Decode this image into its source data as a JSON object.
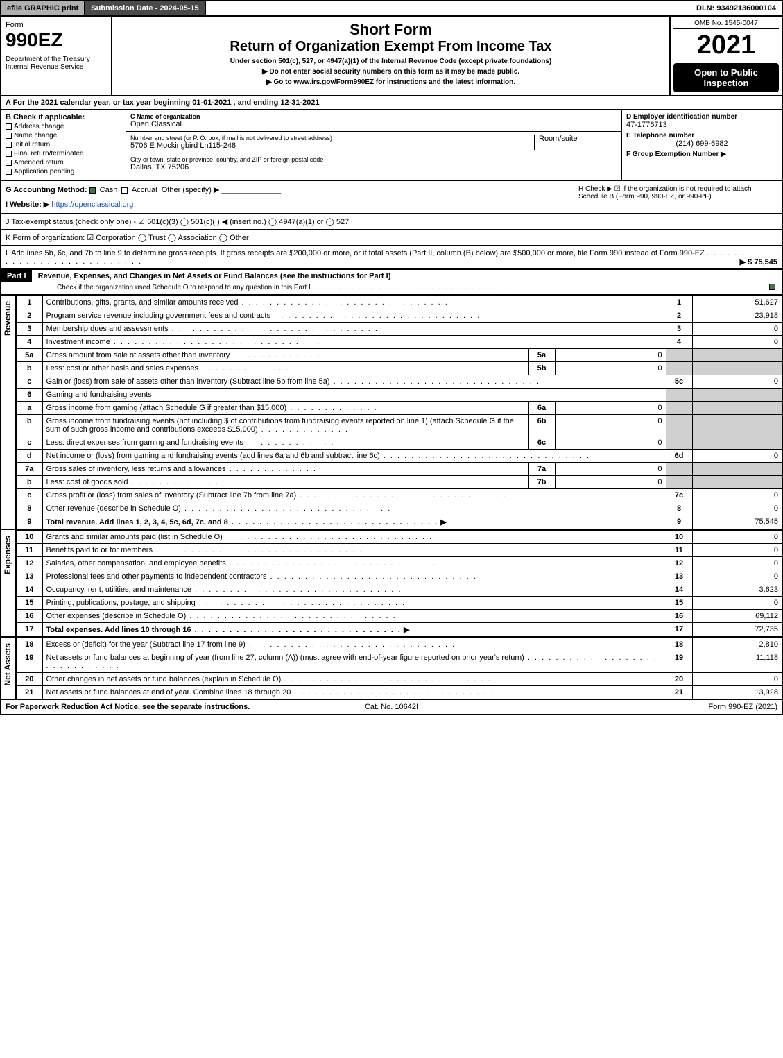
{
  "topbar": {
    "efile": "efile GRAPHIC print",
    "subdate": "Submission Date - 2024-05-15",
    "dln": "DLN: 93492136000104"
  },
  "header": {
    "form": "Form",
    "formnum": "990EZ",
    "dept": "Department of the Treasury\nInternal Revenue Service",
    "short": "Short Form",
    "title": "Return of Organization Exempt From Income Tax",
    "under": "Under section 501(c), 527, or 4947(a)(1) of the Internal Revenue Code (except private foundations)",
    "bullet1": "Do not enter social security numbers on this form as it may be made public.",
    "bullet2": "Go to www.irs.gov/Form990EZ for instructions and the latest information.",
    "omb": "OMB No. 1545-0047",
    "year": "2021",
    "open": "Open to Public Inspection"
  },
  "rowA": "A  For the 2021 calendar year, or tax year beginning 01-01-2021 , and ending 12-31-2021",
  "B": {
    "label": "B  Check if applicable:",
    "opts": [
      "Address change",
      "Name change",
      "Initial return",
      "Final return/terminated",
      "Amended return",
      "Application pending"
    ]
  },
  "C": {
    "namelbl": "C Name of organization",
    "name": "Open Classical",
    "addrlbl": "Number and street (or P. O. box, if mail is not delivered to street address)",
    "addr": "5706 E Mockingbird Ln115-248",
    "roomlbl": "Room/suite",
    "citylbl": "City or town, state or province, country, and ZIP or foreign postal code",
    "city": "Dallas, TX  75206"
  },
  "D": {
    "einlbl": "D Employer identification number",
    "ein": "47-1776713",
    "tellbl": "E Telephone number",
    "tel": "(214) 699-6982",
    "grplbl": "F Group Exemption Number  ▶"
  },
  "G": {
    "label": "G Accounting Method:",
    "cash": "Cash",
    "accr": "Accrual",
    "other": "Other (specify) ▶"
  },
  "H": "H   Check ▶ ☑ if the organization is not required to attach Schedule B (Form 990, 990-EZ, or 990-PF).",
  "I": {
    "label": "I Website: ▶",
    "url": "https://openclassical.org"
  },
  "J": "J Tax-exempt status (check only one) - ☑ 501(c)(3)  ◯ 501(c)(  ) ◀ (insert no.)  ◯ 4947(a)(1) or  ◯ 527",
  "K": "K Form of organization:  ☑ Corporation   ◯ Trust   ◯ Association   ◯ Other",
  "L": {
    "text": "L Add lines 5b, 6c, and 7b to line 9 to determine gross receipts. If gross receipts are $200,000 or more, or if total assets (Part II, column (B) below) are $500,000 or more, file Form 990 instead of Form 990-EZ",
    "amt": "▶ $ 75,545"
  },
  "part1": {
    "bar": "Part I",
    "title": "Revenue, Expenses, and Changes in Net Assets or Fund Balances (see the instructions for Part I)",
    "sub": "Check if the organization used Schedule O to respond to any question in this Part I"
  },
  "sides": {
    "rev": "Revenue",
    "exp": "Expenses",
    "net": "Net Assets"
  },
  "lines": [
    {
      "n": "1",
      "d": "Contributions, gifts, grants, and similar amounts received",
      "c": "1",
      "v": "51,627"
    },
    {
      "n": "2",
      "d": "Program service revenue including government fees and contracts",
      "c": "2",
      "v": "23,918"
    },
    {
      "n": "3",
      "d": "Membership dues and assessments",
      "c": "3",
      "v": "0"
    },
    {
      "n": "4",
      "d": "Investment income",
      "c": "4",
      "v": "0"
    },
    {
      "n": "5a",
      "d": "Gross amount from sale of assets other than inventory",
      "ic": "5a",
      "iv": "0"
    },
    {
      "n": "b",
      "d": "Less: cost or other basis and sales expenses",
      "ic": "5b",
      "iv": "0"
    },
    {
      "n": "c",
      "d": "Gain or (loss) from sale of assets other than inventory (Subtract line 5b from line 5a)",
      "c": "5c",
      "v": "0"
    },
    {
      "n": "6",
      "d": "Gaming and fundraising events"
    },
    {
      "n": "a",
      "d": "Gross income from gaming (attach Schedule G if greater than $15,000)",
      "ic": "6a",
      "iv": "0"
    },
    {
      "n": "b",
      "d": "Gross income from fundraising events (not including $                     of contributions from fundraising events reported on line 1) (attach Schedule G if the sum of such gross income and contributions exceeds $15,000)",
      "ic": "6b",
      "iv": "0"
    },
    {
      "n": "c",
      "d": "Less: direct expenses from gaming and fundraising events",
      "ic": "6c",
      "iv": "0"
    },
    {
      "n": "d",
      "d": "Net income or (loss) from gaming and fundraising events (add lines 6a and 6b and subtract line 6c)",
      "c": "6d",
      "v": "0"
    },
    {
      "n": "7a",
      "d": "Gross sales of inventory, less returns and allowances",
      "ic": "7a",
      "iv": "0"
    },
    {
      "n": "b",
      "d": "Less: cost of goods sold",
      "ic": "7b",
      "iv": "0"
    },
    {
      "n": "c",
      "d": "Gross profit or (loss) from sales of inventory (Subtract line 7b from line 7a)",
      "c": "7c",
      "v": "0"
    },
    {
      "n": "8",
      "d": "Other revenue (describe in Schedule O)",
      "c": "8",
      "v": "0"
    },
    {
      "n": "9",
      "d": "Total revenue. Add lines 1, 2, 3, 4, 5c, 6d, 7c, and 8",
      "c": "9",
      "v": "75,545",
      "bold": true
    }
  ],
  "exp": [
    {
      "n": "10",
      "d": "Grants and similar amounts paid (list in Schedule O)",
      "c": "10",
      "v": "0"
    },
    {
      "n": "11",
      "d": "Benefits paid to or for members",
      "c": "11",
      "v": "0"
    },
    {
      "n": "12",
      "d": "Salaries, other compensation, and employee benefits",
      "c": "12",
      "v": "0"
    },
    {
      "n": "13",
      "d": "Professional fees and other payments to independent contractors",
      "c": "13",
      "v": "0"
    },
    {
      "n": "14",
      "d": "Occupancy, rent, utilities, and maintenance",
      "c": "14",
      "v": "3,623"
    },
    {
      "n": "15",
      "d": "Printing, publications, postage, and shipping",
      "c": "15",
      "v": "0"
    },
    {
      "n": "16",
      "d": "Other expenses (describe in Schedule O)",
      "c": "16",
      "v": "69,112"
    },
    {
      "n": "17",
      "d": "Total expenses. Add lines 10 through 16",
      "c": "17",
      "v": "72,735",
      "bold": true
    }
  ],
  "net": [
    {
      "n": "18",
      "d": "Excess or (deficit) for the year (Subtract line 17 from line 9)",
      "c": "18",
      "v": "2,810"
    },
    {
      "n": "19",
      "d": "Net assets or fund balances at beginning of year (from line 27, column (A)) (must agree with end-of-year figure reported on prior year's return)",
      "c": "19",
      "v": "11,118"
    },
    {
      "n": "20",
      "d": "Other changes in net assets or fund balances (explain in Schedule O)",
      "c": "20",
      "v": "0"
    },
    {
      "n": "21",
      "d": "Net assets or fund balances at end of year. Combine lines 18 through 20",
      "c": "21",
      "v": "13,928"
    }
  ],
  "footer": {
    "l": "For Paperwork Reduction Act Notice, see the separate instructions.",
    "m": "Cat. No. 10642I",
    "r": "Form 990-EZ (2021)"
  }
}
